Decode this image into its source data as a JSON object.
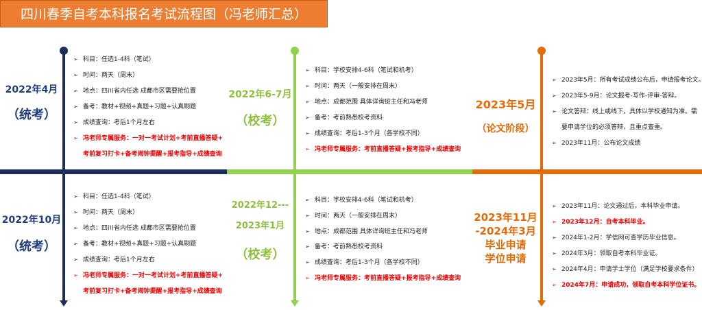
{
  "title": "四川春季自考本科报名考试流程图（冯老师汇总）",
  "colors": {
    "navy": "#1f2d5c",
    "green": "#92d050",
    "orange": "#e26b0a",
    "red": "#ee0000",
    "title_bg": "#ed7d31"
  },
  "bullet": "➢",
  "top": {
    "s1": {
      "date": "2022年4月",
      "type": "（统考）",
      "items": [
        "科目：任选1-4科（笔试）",
        "时间：两天（周末）",
        "地点：四川省内任选 成都市区需要抢位置",
        "备考：教材+视频+真题+习题+认真刷题",
        "成绩查询：考后1个月左右",
        "冯老师专属服务：一对一考试计划+考前直播答疑+",
        "考前复习打卡+备考闹钟提醒+报考指导+成绩查询"
      ]
    },
    "s2": {
      "date": "2022年6-7月",
      "type": "（校考）",
      "items": [
        "科目：学校安排4-6科（笔试和机考）",
        "时间：两天（一般安排在周末）",
        "地点：成都范围 具体详询班主任和冯老师",
        "备考：考前熟悉校考资料",
        "成绩查询：考后1-3个月（各学校不同）",
        "冯老师专属服务：考前直播答疑+报考指导+成绩查询"
      ]
    },
    "s3": {
      "date": "2023年5月",
      "type": "（论文阶段）",
      "items": [
        "2023年5月：所有考试成绩公布后，申请报考论文。",
        "2023年5-9月：论文报考-写作-评审-答辩。",
        "论文答辩：线上或线下，具体以学校通知为准。需",
        "要申请学位的必须答辩，且重点查重。",
        "2023年11月：公布论文成绩"
      ]
    }
  },
  "bottom": {
    "s1": {
      "date": "2022年10月",
      "type": "（统考）",
      "items": [
        "科目：任选1-4科（笔试）",
        "时间：两天（周末）",
        "地点：四川省内任选 成都市区需要抢位置",
        "备考：教材+视频+真题+习题+认真刷题",
        "成绩查询：考后1个月左右",
        "冯老师专属服务：一对一考试计划+考前直播答疑+",
        "考前复习打卡+备考闹钟提醒+报考指导+成绩查询"
      ]
    },
    "s2": {
      "date1": "2022年12---",
      "date2": "2023年1月",
      "type": "（校考）",
      "items": [
        "科目：学校安排4-6科（笔试和机考）",
        "时间：两天（一般安排在周末）",
        "地点：成都范围 具体详询班主任和冯老师",
        "备考：考前熟悉校考资料",
        "成绩查询：考后1-3个月（各学校不同）",
        "冯老师专属服务：考前直播答疑+报考指导+成绩查询"
      ]
    },
    "s3": {
      "lines": [
        "2023年11月",
        "-2024年3月",
        "毕业申请",
        "学位申请"
      ],
      "items": [
        "2023年11月：论文通过后，本科毕业申请。",
        "2023年12月：自考本科毕业。",
        "2024年1-2月：学信网可查学历毕业信息。",
        "2024年3月：领取自考本科毕业证。",
        "2024年4月：申请学士学位（满足学校要求条件）",
        "2024年7月：申请成功，领取自考本科学位证书。"
      ]
    }
  }
}
